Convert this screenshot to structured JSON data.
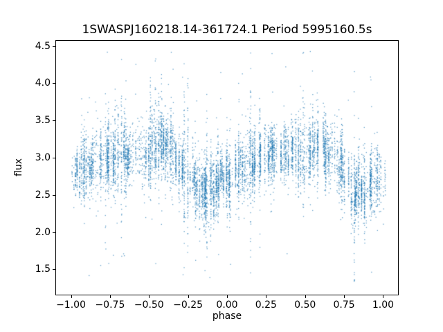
{
  "chart_data": {
    "type": "scatter",
    "title": "1SWASPJ160218.14-361724.1 Period 5995160.5s",
    "xlabel": "phase",
    "ylabel": "flux",
    "xlim": [
      -1.1,
      1.1
    ],
    "ylim": [
      1.15,
      4.58
    ],
    "x_ticks": [
      -1.0,
      -0.75,
      -0.5,
      -0.25,
      0.0,
      0.25,
      0.5,
      0.75,
      1.0
    ],
    "x_tick_labels": [
      "−1.00",
      "−0.75",
      "−0.50",
      "−0.25",
      "0.00",
      "0.25",
      "0.50",
      "0.75",
      "1.00"
    ],
    "y_ticks": [
      1.5,
      2.0,
      2.5,
      3.0,
      3.5,
      4.0,
      4.5
    ],
    "y_tick_labels": [
      "1.5",
      "2.0",
      "2.5",
      "3.0",
      "3.5",
      "4.0",
      "4.5"
    ],
    "marker_color": "#1f77b4",
    "marker_alpha": 0.7,
    "marker_size_px": 1.3,
    "grid": false,
    "legend": "none",
    "n_points_approx": 8000,
    "seed": 42,
    "phase_range": [
      -1.0,
      1.0
    ],
    "flux_range_observed": [
      1.3,
      4.45
    ],
    "flux_envelope": {
      "comment": "mean flux vs phase folded to one cycle (pattern repeats with period 1 across the -1..1 axis); vertical striping from discrete observation columns",
      "phase": [
        0.0,
        0.05,
        0.1,
        0.15,
        0.2,
        0.25,
        0.3,
        0.35,
        0.4,
        0.45,
        0.5,
        0.55,
        0.6,
        0.65,
        0.7,
        0.75,
        0.8,
        0.85,
        0.9,
        0.95,
        1.0
      ],
      "mean": [
        2.75,
        2.8,
        2.85,
        2.9,
        2.95,
        3.0,
        3.05,
        3.05,
        3.1,
        3.05,
        3.05,
        3.15,
        3.2,
        3.1,
        2.95,
        2.8,
        2.6,
        2.55,
        2.6,
        2.7,
        2.75
      ],
      "typical_std": 0.22
    },
    "outliers": {
      "high_fraction": 0.005,
      "low_fraction": 0.004,
      "high_flux_range": [
        3.7,
        4.45
      ],
      "low_flux_range": [
        1.3,
        2.2
      ]
    }
  },
  "background_color": "#ffffff",
  "axes_color": "#000000"
}
